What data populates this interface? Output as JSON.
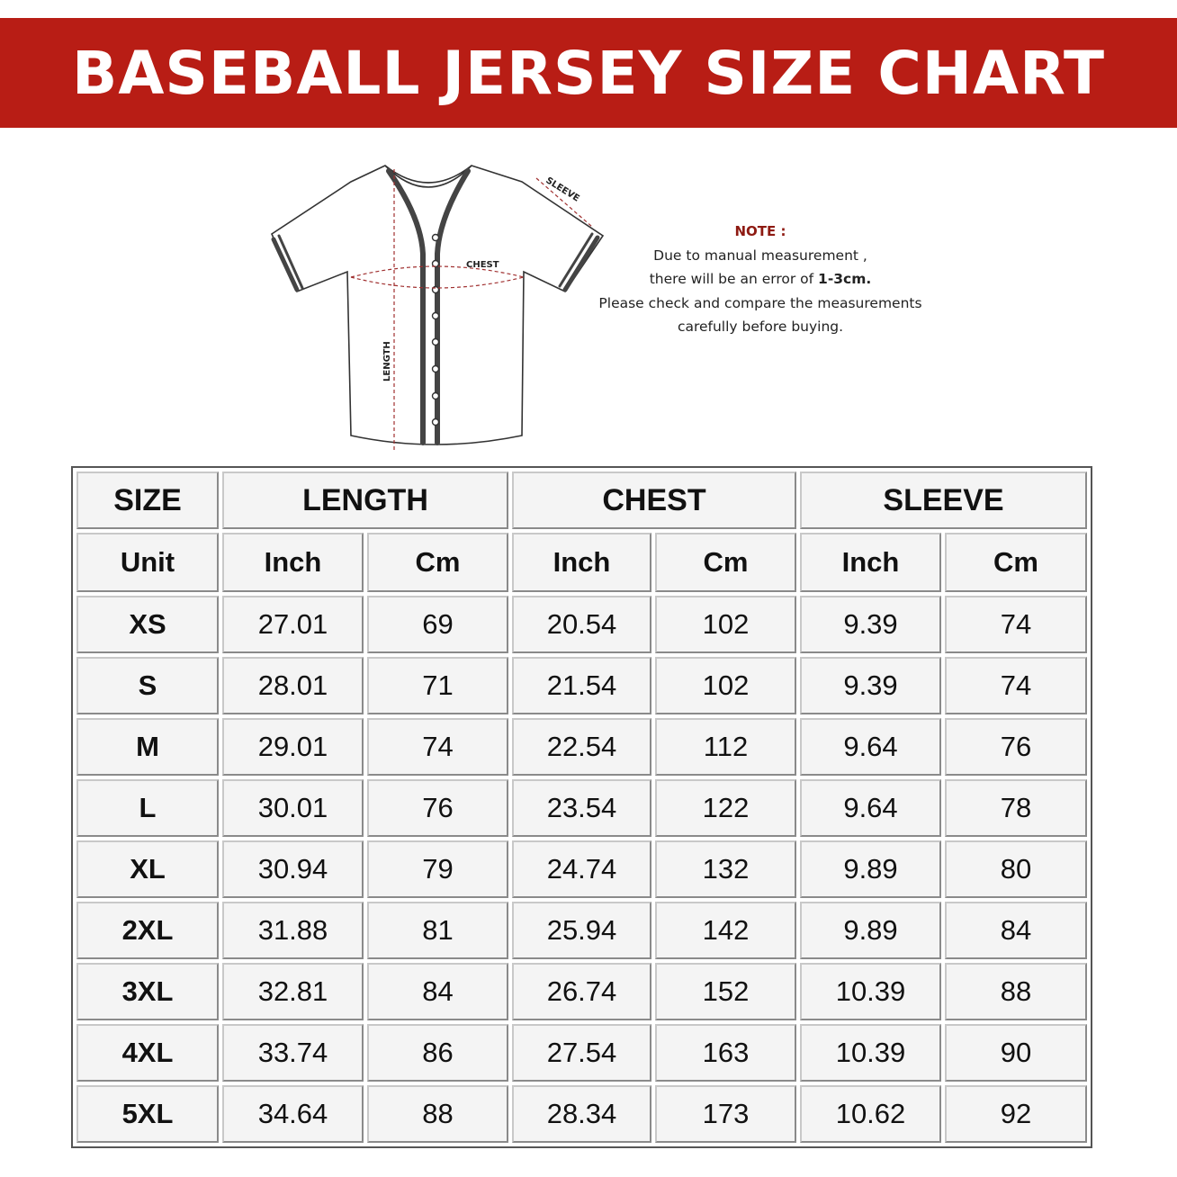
{
  "title": "BASEBALL JERSEY SIZE CHART",
  "diagram": {
    "sleeve_label": "SLEEVE",
    "chest_label": "CHEST",
    "length_label": "LENGTH"
  },
  "note": {
    "title": "NOTE :",
    "line1": "Due to manual measurement ,",
    "line2_prefix": "there will be an error of ",
    "line2_bold": "1-3cm.",
    "line3": "Please check and compare the measurements",
    "line4": "carefully before buying."
  },
  "colors": {
    "banner": "#b81d15",
    "note_title": "#8e1a12"
  },
  "table": {
    "headers": {
      "size": "SIZE",
      "length": "LENGTH",
      "chest": "CHEST",
      "sleeve": "SLEEVE"
    },
    "units": {
      "unit": "Unit",
      "inch": "Inch",
      "cm": "Cm"
    },
    "rows": [
      {
        "size": "XS",
        "length_in": "27.01",
        "length_cm": "69",
        "chest_in": "20.54",
        "chest_cm": "102",
        "sleeve_in": "9.39",
        "sleeve_cm": "74"
      },
      {
        "size": "S",
        "length_in": "28.01",
        "length_cm": "71",
        "chest_in": "21.54",
        "chest_cm": "102",
        "sleeve_in": "9.39",
        "sleeve_cm": "74"
      },
      {
        "size": "M",
        "length_in": "29.01",
        "length_cm": "74",
        "chest_in": "22.54",
        "chest_cm": "112",
        "sleeve_in": "9.64",
        "sleeve_cm": "76"
      },
      {
        "size": "L",
        "length_in": "30.01",
        "length_cm": "76",
        "chest_in": "23.54",
        "chest_cm": "122",
        "sleeve_in": "9.64",
        "sleeve_cm": "78"
      },
      {
        "size": "XL",
        "length_in": "30.94",
        "length_cm": "79",
        "chest_in": "24.74",
        "chest_cm": "132",
        "sleeve_in": "9.89",
        "sleeve_cm": "80"
      },
      {
        "size": "2XL",
        "length_in": "31.88",
        "length_cm": "81",
        "chest_in": "25.94",
        "chest_cm": "142",
        "sleeve_in": "9.89",
        "sleeve_cm": "84"
      },
      {
        "size": "3XL",
        "length_in": "32.81",
        "length_cm": "84",
        "chest_in": "26.74",
        "chest_cm": "152",
        "sleeve_in": "10.39",
        "sleeve_cm": "88"
      },
      {
        "size": "4XL",
        "length_in": "33.74",
        "length_cm": "86",
        "chest_in": "27.54",
        "chest_cm": "163",
        "sleeve_in": "10.39",
        "sleeve_cm": "90"
      },
      {
        "size": "5XL",
        "length_in": "34.64",
        "length_cm": "88",
        "chest_in": "28.34",
        "chest_cm": "173",
        "sleeve_in": "10.62",
        "sleeve_cm": "92"
      }
    ]
  }
}
